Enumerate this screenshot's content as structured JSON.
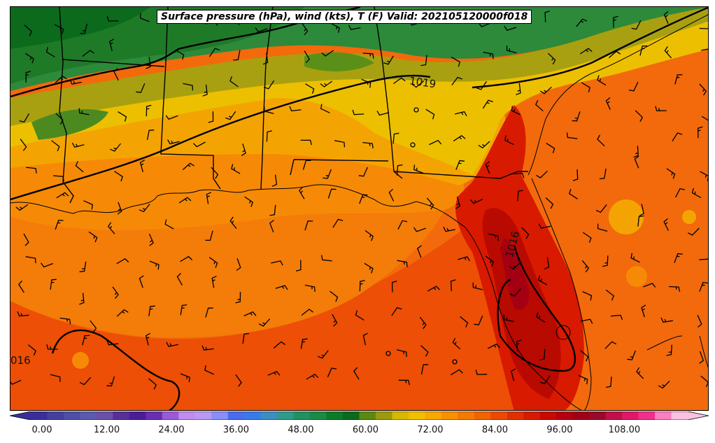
{
  "title": "Surface pressure (hPa), wind (kts), T (F) Valid: 202105120000f018",
  "contour_labels": [
    "1019",
    "1016",
    "016"
  ],
  "colorbar": {
    "ticks": [
      "0.00",
      "12.00",
      "24.00",
      "36.00",
      "48.00",
      "60.00",
      "72.00",
      "84.00",
      "96.00",
      "108.00"
    ],
    "colors": [
      "#3a2f9a",
      "#44409f",
      "#4d4fa6",
      "#5b5aae",
      "#6a50a8",
      "#56309a",
      "#4a1d9a",
      "#6a2fb0",
      "#9a5ad8",
      "#c08cf0",
      "#b89af5",
      "#8a8ff8",
      "#4a6df0",
      "#3a7ae8",
      "#3d8ec0",
      "#2f9a8a",
      "#239062",
      "#1a8a45",
      "#0d7a2a",
      "#0b6a1c",
      "#5a8a10",
      "#9a9a10",
      "#d8b800",
      "#f0c000",
      "#f8a800",
      "#f89000",
      "#f47a00",
      "#f06400",
      "#ec4a00",
      "#e03000",
      "#d81a00",
      "#c80a00",
      "#b40010",
      "#a00018",
      "#980a28",
      "#c0104a",
      "#e0186a",
      "#f0308a",
      "#f880c0",
      "#fcc0e0"
    ]
  }
}
